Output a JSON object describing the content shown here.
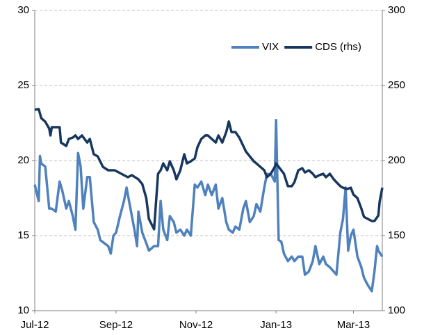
{
  "chart_data": {
    "type": "line",
    "xlim": [
      0,
      265
    ],
    "xticks": [
      {
        "value": 0,
        "label": "Jul-12"
      },
      {
        "value": 62,
        "label": "Sep-12"
      },
      {
        "value": 123,
        "label": "Nov-12"
      },
      {
        "value": 184,
        "label": "Jan-13"
      },
      {
        "value": 243,
        "label": "Mar-13"
      }
    ],
    "ylim": [
      10,
      30
    ],
    "yticks": [
      10,
      15,
      20,
      25,
      30
    ],
    "y2lim": [
      100,
      300
    ],
    "y2ticks": [
      100,
      150,
      200,
      250,
      300
    ],
    "grid": true,
    "legend": "top-right",
    "series": [
      {
        "name": "VIX",
        "color": "#4f81bd",
        "x": [
          0,
          3,
          4,
          5,
          8,
          11,
          13,
          16,
          19,
          21,
          24,
          26,
          29,
          31,
          33,
          35,
          37,
          40,
          42,
          45,
          48,
          50,
          53,
          56,
          58,
          60,
          62,
          65,
          68,
          70,
          73,
          76,
          78,
          79,
          82,
          85,
          87,
          91,
          94,
          96,
          98,
          101,
          103,
          106,
          108,
          111,
          114,
          116,
          119,
          122,
          124,
          127,
          130,
          132,
          135,
          138,
          140,
          143,
          146,
          148,
          151,
          153,
          156,
          159,
          161,
          164,
          167,
          169,
          172,
          175,
          177,
          180,
          183,
          184,
          186,
          188,
          190,
          193,
          196,
          198,
          201,
          204,
          206,
          209,
          212,
          214,
          217,
          220,
          222,
          225,
          228,
          230,
          233,
          235,
          237,
          239,
          241,
          243,
          246,
          249,
          251,
          254,
          257,
          259,
          261,
          262,
          265
        ],
        "values": [
          18.4,
          17.3,
          20.3,
          19.8,
          19.6,
          16.8,
          16.8,
          16.6,
          18.6,
          18.0,
          16.8,
          17.3,
          16.3,
          15.4,
          20.5,
          19.6,
          16.8,
          18.9,
          18.9,
          15.9,
          15.4,
          14.7,
          14.5,
          14.3,
          13.8,
          15.0,
          15.2,
          16.3,
          17.3,
          18.2,
          16.8,
          15.4,
          14.3,
          16.6,
          15.2,
          14.5,
          14.0,
          14.3,
          14.3,
          17.3,
          15.4,
          14.7,
          16.3,
          15.9,
          15.2,
          15.4,
          15.0,
          15.4,
          15.0,
          18.4,
          18.2,
          18.6,
          17.7,
          18.4,
          17.7,
          18.4,
          16.8,
          17.5,
          15.9,
          15.4,
          15.2,
          15.6,
          15.4,
          16.8,
          17.3,
          15.9,
          16.3,
          17.1,
          16.6,
          18.2,
          19.1,
          19.1,
          18.6,
          22.7,
          14.7,
          14.6,
          13.8,
          13.3,
          13.6,
          13.3,
          13.6,
          13.6,
          12.4,
          12.6,
          13.3,
          14.3,
          13.1,
          13.6,
          13.1,
          12.9,
          12.6,
          12.4,
          15.2,
          16.1,
          18.2,
          14.0,
          15.0,
          15.4,
          13.6,
          12.9,
          12.2,
          11.7,
          11.3,
          12.6,
          14.3,
          14.0,
          13.6
        ]
      },
      {
        "name": "CDS (rhs)",
        "color": "#17375e",
        "axis": "y2",
        "x": [
          0,
          3,
          5,
          8,
          11,
          12,
          13,
          19,
          20,
          24,
          26,
          29,
          31,
          33,
          36,
          40,
          42,
          45,
          48,
          52,
          56,
          61,
          66,
          71,
          74,
          79,
          82,
          85,
          87,
          91,
          94,
          96,
          98,
          101,
          103,
          106,
          108,
          111,
          114,
          116,
          119,
          122,
          124,
          127,
          130,
          132,
          135,
          138,
          140,
          143,
          146,
          148,
          150,
          153,
          156,
          159,
          161,
          164,
          167,
          169,
          172,
          175,
          177,
          180,
          183,
          184,
          186,
          188,
          190,
          193,
          196,
          198,
          201,
          204,
          206,
          209,
          212,
          214,
          217,
          220,
          222,
          225,
          228,
          230,
          233,
          235,
          238,
          241,
          243,
          246,
          249,
          251,
          254,
          257,
          259,
          262,
          263,
          265
        ],
        "values": [
          233.8,
          234.3,
          228.2,
          225.9,
          221.3,
          216.7,
          222.2,
          222.2,
          212,
          209.7,
          214.4,
          215.3,
          216.7,
          214.4,
          216.7,
          212,
          214.4,
          204.2,
          202.8,
          195.8,
          193.5,
          193.5,
          191.2,
          188.9,
          190.3,
          187.5,
          184.3,
          175,
          161.1,
          154.2,
          191.2,
          193.5,
          198.1,
          193.5,
          199.5,
          193.5,
          187.5,
          193.5,
          204.2,
          198.1,
          199.5,
          201.4,
          208.8,
          214.4,
          216.7,
          216.7,
          214.4,
          212,
          216.7,
          212,
          219,
          226,
          219,
          219,
          215.3,
          209.7,
          206,
          202.8,
          199.5,
          198.1,
          195.8,
          193.5,
          188.9,
          191.2,
          195.8,
          198.1,
          195.8,
          193.5,
          191.2,
          182.9,
          182.9,
          185.6,
          193.5,
          194.9,
          192.1,
          193.5,
          191.2,
          188.9,
          190.3,
          191.2,
          188.9,
          191.2,
          187.5,
          185.6,
          182.9,
          181.9,
          181,
          181.9,
          177.3,
          175,
          168.1,
          162.5,
          161.1,
          159.7,
          159.7,
          163.4,
          172.7,
          181.9
        ]
      }
    ]
  }
}
